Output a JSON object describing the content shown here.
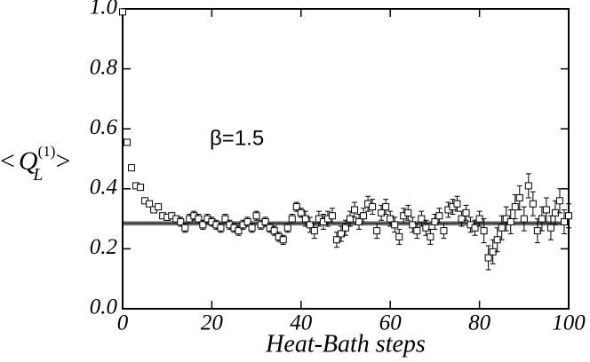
{
  "chart_data": {
    "type": "errorbar",
    "x_label": "Heat-Bath steps",
    "y_label": {
      "left": "<",
      "base": "Q",
      "superscript": "(1)",
      "subscript": "L",
      "right": ">"
    },
    "annotation": "β=1.5",
    "xlim": [
      0,
      100
    ],
    "ylim": [
      0,
      1
    ],
    "xticks": [
      0,
      20,
      40,
      60,
      80,
      100
    ],
    "yticks": [
      {
        "value": 0,
        "label": "0.0"
      },
      {
        "value": 0.2,
        "label": "0.2"
      },
      {
        "value": 0.4,
        "label": "0.4"
      },
      {
        "value": 0.6,
        "label": "0.6"
      },
      {
        "value": 0.8,
        "label": "0.8"
      },
      {
        "value": 1,
        "label": "1.0"
      }
    ],
    "color": "#000000",
    "marker": "open-square",
    "reference": {
      "value": 0.285,
      "error": 0.005
    },
    "x": [
      0,
      1,
      2,
      3,
      4,
      5,
      6,
      7,
      8,
      9,
      10,
      11,
      12,
      13,
      14,
      15,
      16,
      17,
      18,
      19,
      20,
      21,
      22,
      23,
      24,
      25,
      26,
      27,
      28,
      29,
      30,
      31,
      32,
      33,
      34,
      35,
      36,
      37,
      38,
      39,
      40,
      41,
      42,
      43,
      44,
      45,
      46,
      47,
      48,
      49,
      50,
      51,
      52,
      53,
      54,
      55,
      56,
      57,
      58,
      59,
      60,
      61,
      62,
      63,
      64,
      65,
      66,
      67,
      68,
      69,
      70,
      71,
      72,
      73,
      74,
      75,
      76,
      77,
      78,
      79,
      80,
      81,
      82,
      83,
      84,
      85,
      86,
      87,
      88,
      89,
      90,
      91,
      92,
      93,
      94,
      95,
      96,
      97,
      98,
      99,
      100
    ],
    "values": [
      0.99,
      0.555,
      0.47,
      0.41,
      0.405,
      0.36,
      0.35,
      0.33,
      0.34,
      0.31,
      0.305,
      0.31,
      0.3,
      0.29,
      0.27,
      0.3,
      0.31,
      0.3,
      0.28,
      0.3,
      0.29,
      0.28,
      0.27,
      0.3,
      0.28,
      0.27,
      0.26,
      0.28,
      0.29,
      0.27,
      0.31,
      0.28,
      0.29,
      0.27,
      0.26,
      0.24,
      0.23,
      0.27,
      0.3,
      0.34,
      0.32,
      0.3,
      0.28,
      0.26,
      0.3,
      0.29,
      0.3,
      0.31,
      0.23,
      0.25,
      0.27,
      0.3,
      0.33,
      0.29,
      0.31,
      0.35,
      0.34,
      0.26,
      0.32,
      0.34,
      0.3,
      0.28,
      0.24,
      0.31,
      0.32,
      0.28,
      0.26,
      0.3,
      0.27,
      0.24,
      0.29,
      0.31,
      0.26,
      0.33,
      0.34,
      0.35,
      0.3,
      0.32,
      0.28,
      0.27,
      0.3,
      0.26,
      0.17,
      0.19,
      0.23,
      0.27,
      0.3,
      0.29,
      0.34,
      0.37,
      0.3,
      0.41,
      0.35,
      0.26,
      0.3,
      0.33,
      0.27,
      0.32,
      0.36,
      0.29,
      0.31
    ],
    "errors": [
      0.005,
      0.005,
      0.005,
      0.005,
      0.005,
      0.005,
      0.005,
      0.005,
      0.005,
      0.005,
      0.005,
      0.005,
      0.005,
      0.015,
      0.015,
      0.015,
      0.015,
      0.015,
      0.015,
      0.015,
      0.015,
      0.015,
      0.015,
      0.015,
      0.015,
      0.015,
      0.015,
      0.015,
      0.015,
      0.015,
      0.015,
      0.015,
      0.015,
      0.015,
      0.015,
      0.015,
      0.015,
      0.015,
      0.015,
      0.015,
      0.015,
      0.025,
      0.025,
      0.025,
      0.025,
      0.025,
      0.025,
      0.025,
      0.025,
      0.025,
      0.025,
      0.025,
      0.025,
      0.025,
      0.025,
      0.025,
      0.025,
      0.025,
      0.025,
      0.025,
      0.025,
      0.025,
      0.025,
      0.025,
      0.025,
      0.025,
      0.025,
      0.025,
      0.025,
      0.025,
      0.025,
      0.025,
      0.025,
      0.025,
      0.025,
      0.025,
      0.025,
      0.025,
      0.025,
      0.025,
      0.025,
      0.04,
      0.04,
      0.04,
      0.04,
      0.04,
      0.04,
      0.04,
      0.04,
      0.04,
      0.04,
      0.04,
      0.04,
      0.04,
      0.04,
      0.04,
      0.04,
      0.04,
      0.04,
      0.04,
      0.04
    ]
  }
}
